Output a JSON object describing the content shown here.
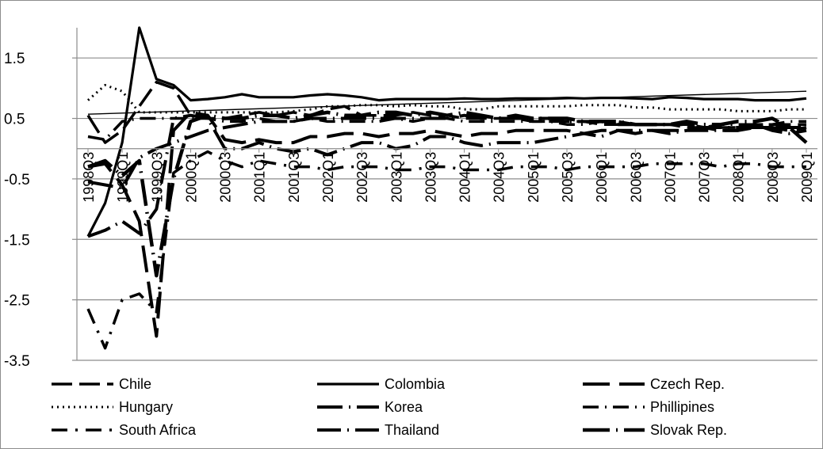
{
  "chart_data": {
    "type": "line",
    "title": "",
    "xlabel": "",
    "ylabel": "",
    "ylim": [
      -3.5,
      2.0
    ],
    "yticks": [
      1.5,
      0.5,
      -0.5,
      -1.5,
      -2.5,
      -3.5
    ],
    "ytick_labels": [
      "1.5",
      "0.5",
      "-0.5",
      "-1.5",
      "-2.5",
      "-3.5"
    ],
    "grid": "horizontal",
    "x_axis_crosses_y_at": 0,
    "legend_position": "bottom",
    "categories": [
      "1998Q3",
      "1998Q4",
      "1999Q1",
      "1999Q2",
      "1999Q3",
      "1999Q4",
      "2000Q1",
      "2000Q2",
      "2000Q3",
      "2000Q4",
      "2001Q1",
      "2001Q2",
      "2001Q3",
      "2001Q4",
      "2002Q1",
      "2002Q2",
      "2002Q3",
      "2002Q4",
      "2003Q1",
      "2003Q2",
      "2003Q3",
      "2003Q4",
      "2004Q1",
      "2004Q2",
      "2004Q3",
      "2004Q4",
      "2005Q1",
      "2005Q2",
      "2005Q3",
      "2005Q4",
      "2006Q1",
      "2006Q2",
      "2006Q3",
      "2006Q4",
      "2007Q1",
      "2007Q2",
      "2007Q3",
      "2007Q4",
      "2008Q1",
      "2008Q2",
      "2008Q3",
      "2008Q4",
      "2009Q1"
    ],
    "tick_labels": [
      "1998Q3",
      "1999Q1",
      "1999Q3",
      "2000Q1",
      "2000Q3",
      "2001Q1",
      "2001Q3",
      "2002Q1",
      "2002Q3",
      "2003Q1",
      "2003Q3",
      "2004Q1",
      "2004Q3",
      "2005Q1",
      "2005Q3",
      "2006Q1",
      "2006Q3",
      "2007Q1",
      "2007Q3",
      "2008Q1",
      "2008Q3",
      "2009Q1"
    ],
    "series": [
      {
        "name": "Chile",
        "dash": "26,9",
        "width": 3.5,
        "values": [
          0.55,
          0.1,
          0.3,
          0.7,
          1.1,
          1.0,
          0.55,
          0.5,
          0.5,
          0.55,
          0.6,
          0.55,
          0.6,
          0.55,
          0.65,
          0.7,
          0.55,
          0.55,
          0.55,
          0.6,
          0.55,
          0.55,
          0.5,
          0.5,
          0.5,
          0.5,
          0.45,
          0.45,
          0.45,
          0.45,
          0.4,
          0.4,
          0.4,
          0.4,
          0.4,
          0.35,
          0.35,
          0.35,
          0.35,
          0.4,
          0.4,
          0.4,
          0.4
        ]
      },
      {
        "name": "Colombia",
        "dash": "",
        "width": 3.2,
        "values": [
          -1.45,
          -0.9,
          0.1,
          2.0,
          1.15,
          1.05,
          0.8,
          0.82,
          0.85,
          0.9,
          0.85,
          0.85,
          0.85,
          0.88,
          0.9,
          0.88,
          0.85,
          0.8,
          0.82,
          0.82,
          0.82,
          0.82,
          0.83,
          0.82,
          0.82,
          0.83,
          0.83,
          0.83,
          0.84,
          0.83,
          0.84,
          0.84,
          0.83,
          0.82,
          0.85,
          0.84,
          0.82,
          0.82,
          0.82,
          0.8,
          0.8,
          0.8,
          0.83
        ]
      },
      {
        "name": "Czech Rep.",
        "dash": "34,12",
        "width": 4,
        "values": [
          -0.3,
          -0.25,
          -0.6,
          -1.2,
          -3.1,
          0.3,
          0.6,
          0.55,
          0.15,
          0.1,
          0.15,
          0.1,
          0.1,
          0.2,
          0.2,
          0.25,
          0.25,
          0.2,
          0.25,
          0.25,
          0.3,
          0.25,
          0.2,
          0.25,
          0.25,
          0.3,
          0.3,
          0.3,
          0.3,
          0.25,
          0.3,
          0.3,
          0.25,
          0.3,
          0.3,
          0.3,
          0.35,
          0.3,
          0.3,
          0.35,
          0.35,
          0.3,
          0.35
        ]
      },
      {
        "name": "Hungary",
        "dash": "2,5",
        "width": 3,
        "values": [
          0.8,
          1.05,
          0.95,
          0.6,
          0.6,
          0.6,
          0.6,
          0.6,
          0.6,
          0.6,
          0.6,
          0.6,
          0.62,
          0.65,
          0.7,
          0.7,
          0.72,
          0.72,
          0.7,
          0.72,
          0.7,
          0.7,
          0.65,
          0.65,
          0.7,
          0.7,
          0.7,
          0.7,
          0.7,
          0.72,
          0.72,
          0.72,
          0.68,
          0.68,
          0.65,
          0.65,
          0.65,
          0.65,
          0.62,
          0.62,
          0.62,
          0.65,
          0.65
        ]
      },
      {
        "name": "Korea",
        "dash": "32,8,2,8",
        "width": 4,
        "values": [
          -0.55,
          -0.6,
          -0.65,
          -0.15,
          0.0,
          0.1,
          0.2,
          0.3,
          0.35,
          0.4,
          0.45,
          0.45,
          0.45,
          0.5,
          0.5,
          0.5,
          0.5,
          0.5,
          0.5,
          0.5,
          0.5,
          0.5,
          0.55,
          0.5,
          0.5,
          0.5,
          0.5,
          0.5,
          0.45,
          0.45,
          0.45,
          0.4,
          0.4,
          0.4,
          0.4,
          0.4,
          0.35,
          0.35,
          0.35,
          0.35,
          0.35,
          0.35,
          0.35
        ]
      },
      {
        "name": "Phillipines",
        "dash": "20,8,2,8",
        "width": 3.5,
        "values": [
          0.2,
          0.15,
          0.45,
          0.5,
          0.5,
          0.5,
          0.5,
          0.5,
          0.45,
          0.45,
          0.5,
          0.45,
          0.45,
          0.5,
          0.45,
          0.45,
          0.45,
          0.45,
          0.5,
          0.45,
          0.5,
          0.5,
          0.45,
          0.45,
          0.45,
          0.45,
          0.45,
          0.45,
          0.4,
          0.4,
          0.45,
          0.45,
          0.4,
          0.4,
          0.4,
          0.4,
          0.35,
          0.4,
          0.4,
          0.4,
          0.4,
          0.45,
          0.45
        ]
      },
      {
        "name": "South Africa",
        "dash": "20,10,3,10",
        "width": 3.5,
        "values": [
          -2.65,
          -3.3,
          -2.5,
          -2.4,
          -2.7,
          -0.4,
          -0.2,
          -0.05,
          -0.2,
          -0.3,
          -0.2,
          -0.25,
          -0.3,
          -0.3,
          -0.35,
          -0.3,
          -0.3,
          -0.3,
          -0.35,
          -0.35,
          -0.3,
          -0.3,
          -0.35,
          -0.35,
          -0.35,
          -0.3,
          -0.3,
          -0.3,
          -0.35,
          -0.3,
          -0.3,
          -0.3,
          -0.3,
          -0.25,
          -0.25,
          -0.25,
          -0.25,
          -0.3,
          -0.25,
          -0.25,
          -0.3,
          -0.3,
          -0.3
        ]
      },
      {
        "name": "Thailand",
        "dash": "30,8,2,8",
        "width": 4,
        "values": [
          -1.45,
          -1.35,
          -1.2,
          -1.4,
          -1.0,
          0.5,
          0.55,
          0.5,
          0.0,
          0.0,
          0.1,
          0.0,
          -0.05,
          0.0,
          -0.1,
          0.0,
          0.1,
          0.1,
          0.0,
          0.05,
          0.2,
          0.2,
          0.1,
          0.05,
          0.1,
          0.1,
          0.1,
          0.15,
          0.2,
          0.25,
          0.2,
          0.3,
          0.3,
          0.3,
          0.25,
          0.3,
          0.3,
          0.3,
          0.3,
          0.4,
          0.3,
          0.25,
          0.3
        ]
      },
      {
        "name": "Slovak Rep.",
        "dash": "34,8,2,8",
        "width": 4.5,
        "values": [
          -0.3,
          -0.2,
          -0.45,
          -0.2,
          -2.1,
          -0.5,
          0.45,
          0.55,
          0.5,
          0.5,
          0.55,
          0.55,
          0.5,
          0.55,
          0.6,
          0.55,
          0.55,
          0.6,
          0.6,
          0.55,
          0.6,
          0.55,
          0.6,
          0.55,
          0.5,
          0.55,
          0.5,
          0.5,
          0.5,
          0.45,
          0.45,
          0.45,
          0.4,
          0.4,
          0.4,
          0.45,
          0.4,
          0.4,
          0.45,
          0.45,
          0.5,
          0.35,
          0.1
        ]
      }
    ],
    "trendline": {
      "start": 0.57,
      "end": 0.95
    }
  }
}
